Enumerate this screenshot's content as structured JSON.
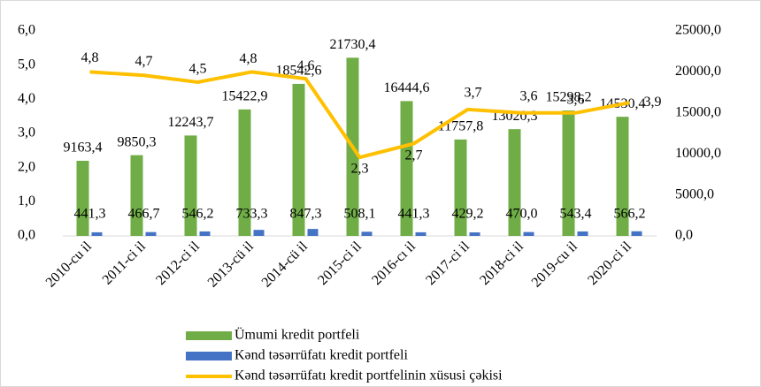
{
  "chart_data": {
    "type": "bar_line",
    "categories": [
      "2010-cu il",
      "2011-ci il",
      "2012-ci il",
      "2013-cü il",
      "2014-cü il",
      "2015-ci il",
      "2016-cı il",
      "2017-ci il",
      "2018-ci il",
      "2019-cu il",
      "2020-ci il"
    ],
    "series": [
      {
        "name": "Ümumi kredit portfeli",
        "color": "#70ad47",
        "type": "bar",
        "axis": "y2",
        "values": [
          9163.4,
          9850.3,
          12243.7,
          15422.9,
          18542.6,
          21730.4,
          16444.6,
          11757.8,
          13020.3,
          15298.2,
          14530.4
        ],
        "value_labels": [
          "9163,4",
          "9850,3",
          "12243,7",
          "15422,9",
          "18542,6",
          "21730,4",
          "16444,6",
          "11757,8",
          "13020,3",
          "15298,2",
          "14530,4"
        ]
      },
      {
        "name": "Kənd təsərrüfatı kredit portfeli",
        "color": "#4472c4",
        "type": "bar",
        "axis": "y2",
        "values": [
          441.3,
          466.7,
          546.2,
          733.3,
          847.3,
          508.1,
          441.3,
          429.2,
          470.0,
          543.4,
          566.2
        ],
        "value_labels": [
          "441,3",
          "466,7",
          "546,2",
          "733,3",
          "847,3",
          "508,1",
          "441,3",
          "429,2",
          "470,0",
          "543,4",
          "566,2"
        ]
      },
      {
        "name": "Kənd təsərrüfatı kredit portfelinin xüsusi çəkisi",
        "color": "#ffc000",
        "type": "line",
        "values": [
          4.8,
          4.7,
          4.5,
          4.8,
          4.6,
          2.3,
          2.7,
          3.7,
          3.6,
          3.6,
          3.9
        ],
        "value_labels": [
          "4,8",
          "4,7",
          "4,5",
          "4,8",
          "4,6",
          "2,3",
          "2,7",
          "3,7",
          "3,6",
          "3,6",
          "3,9"
        ]
      }
    ],
    "ylim": [
      0,
      6
    ],
    "yticks": [
      {
        "value": 0,
        "label": "0,0"
      },
      {
        "value": 1,
        "label": "1,0"
      },
      {
        "value": 2,
        "label": "2,0"
      },
      {
        "value": 3,
        "label": "3,0"
      },
      {
        "value": 4,
        "label": "4,0"
      },
      {
        "value": 5,
        "label": "5,0"
      },
      {
        "value": 6,
        "label": "6,0"
      }
    ],
    "y2lim": [
      0,
      25000
    ],
    "y2ticks": [
      {
        "value": 0,
        "label": "0,0"
      },
      {
        "value": 5000,
        "label": "5000,0"
      },
      {
        "value": 10000,
        "label": "10000,0"
      },
      {
        "value": 15000,
        "label": "15000,0"
      },
      {
        "value": 20000,
        "label": "20000,0"
      },
      {
        "value": 25000,
        "label": "25000,0"
      }
    ],
    "legend": "bottom"
  }
}
